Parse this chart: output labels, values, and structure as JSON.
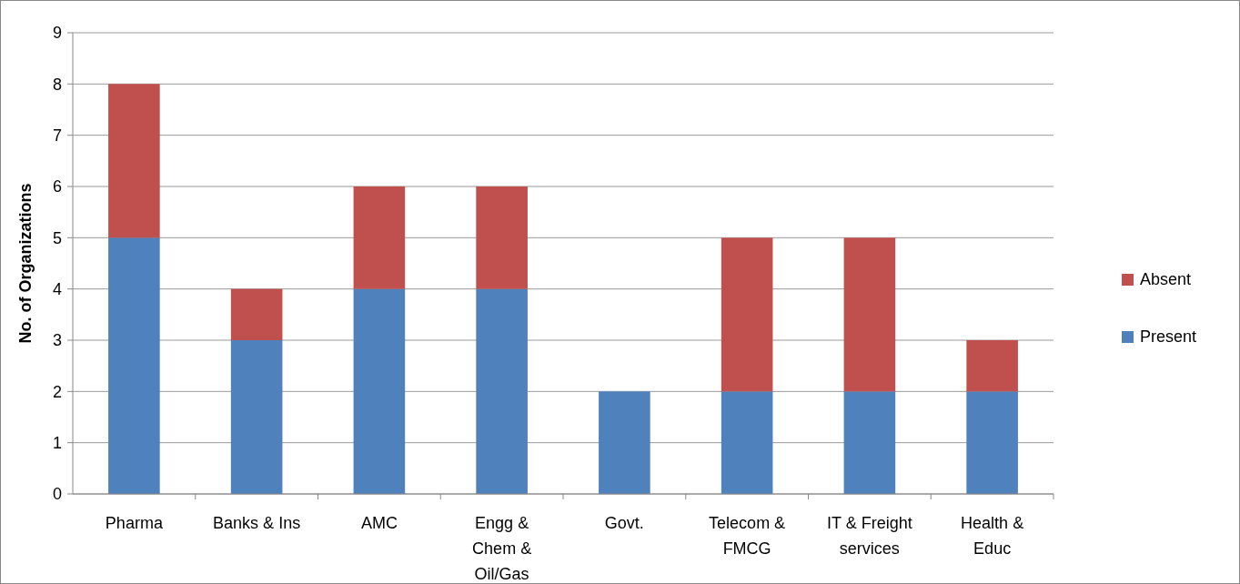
{
  "chart_data": {
    "type": "bar",
    "stacked": true,
    "ylabel": "No. of Organizations",
    "categories": [
      "Pharma",
      "Banks & Ins",
      "AMC",
      "Engg & Chem & Oil/Gas",
      "Govt.",
      "Telecom & FMCG",
      "IT & Freight services",
      "Health & Educ"
    ],
    "series": [
      {
        "name": "Present",
        "color": "#4f81bd",
        "values": [
          5,
          3,
          4,
          4,
          2,
          2,
          2,
          2
        ]
      },
      {
        "name": "Absent",
        "color": "#c0504d",
        "values": [
          3,
          1,
          2,
          2,
          0,
          3,
          3,
          1
        ]
      }
    ],
    "ylim": [
      0,
      9
    ],
    "yticks": [
      0,
      1,
      2,
      3,
      4,
      5,
      6,
      7,
      8,
      9
    ],
    "grid": "y",
    "legend": "right"
  }
}
